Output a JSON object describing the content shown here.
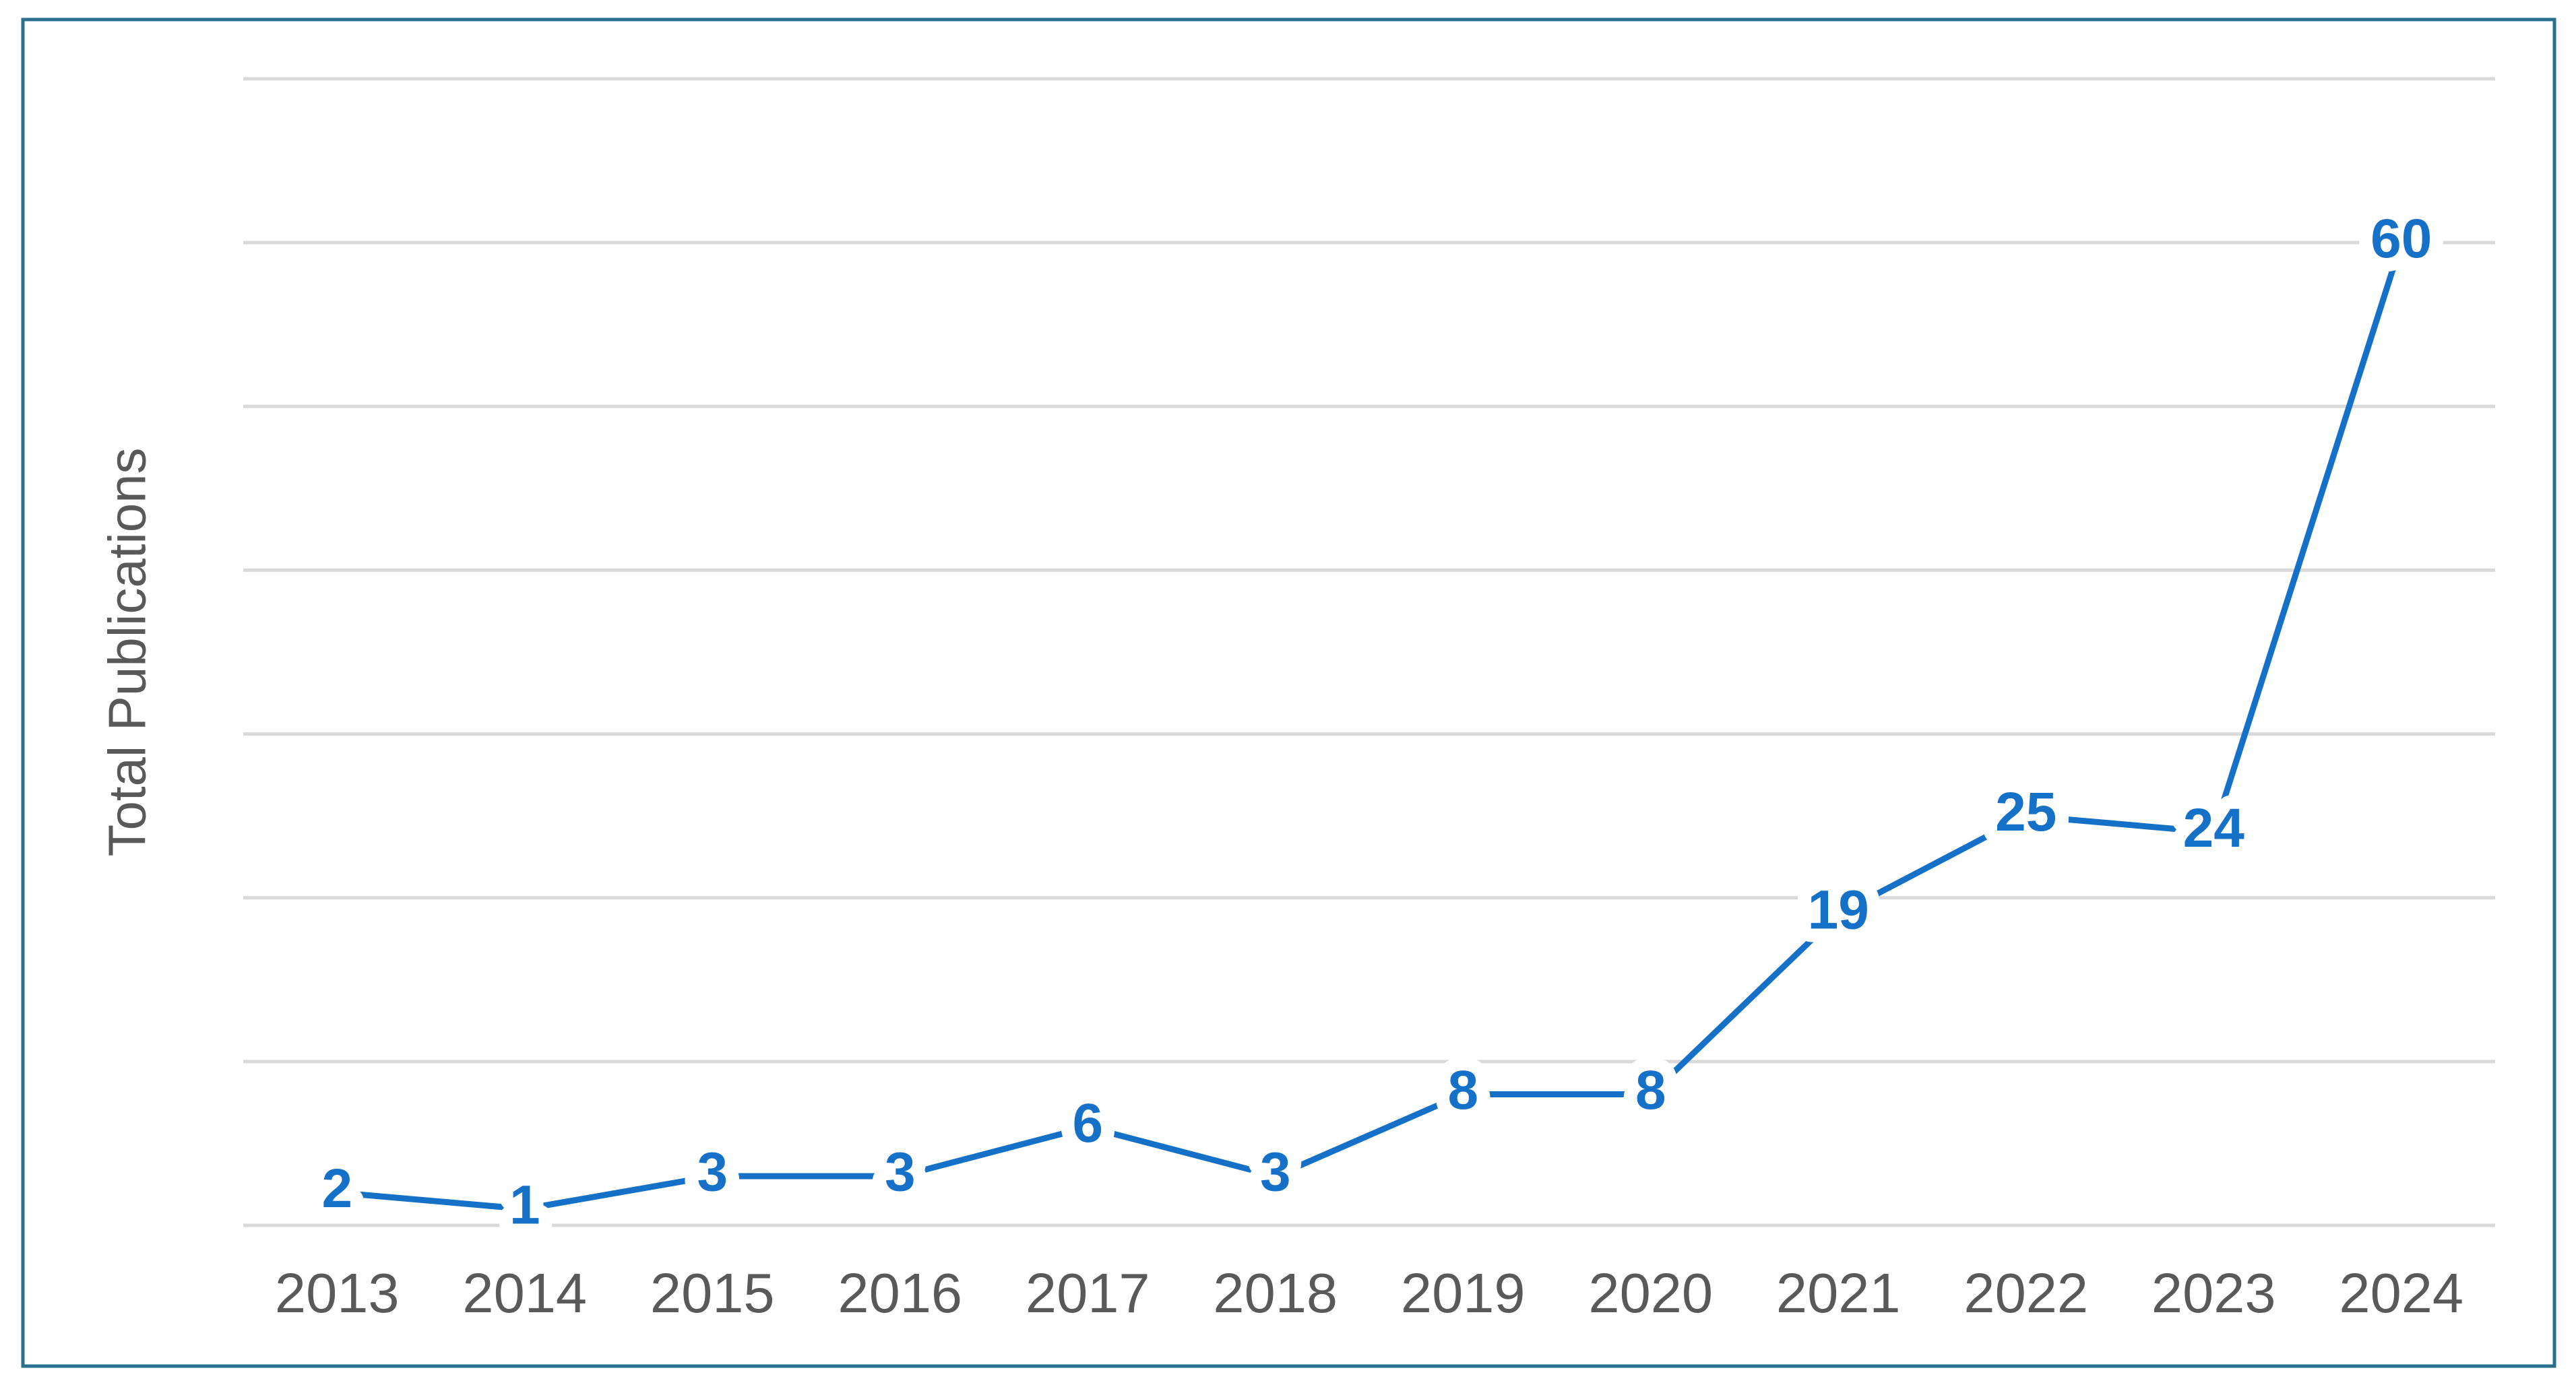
{
  "chart_data": {
    "type": "line",
    "y_label": "Total Publications",
    "categories": [
      "2013",
      "2014",
      "2015",
      "2016",
      "2017",
      "2018",
      "2019",
      "2020",
      "2021",
      "2022",
      "2023",
      "2024"
    ],
    "values": [
      2,
      1,
      3,
      3,
      6,
      3,
      8,
      8,
      19,
      25,
      24,
      60
    ],
    "color": "#1570c8",
    "ylim": [
      0,
      70
    ],
    "yticks": [
      0,
      10,
      20,
      30,
      40,
      50,
      60,
      70
    ],
    "grid": true
  }
}
